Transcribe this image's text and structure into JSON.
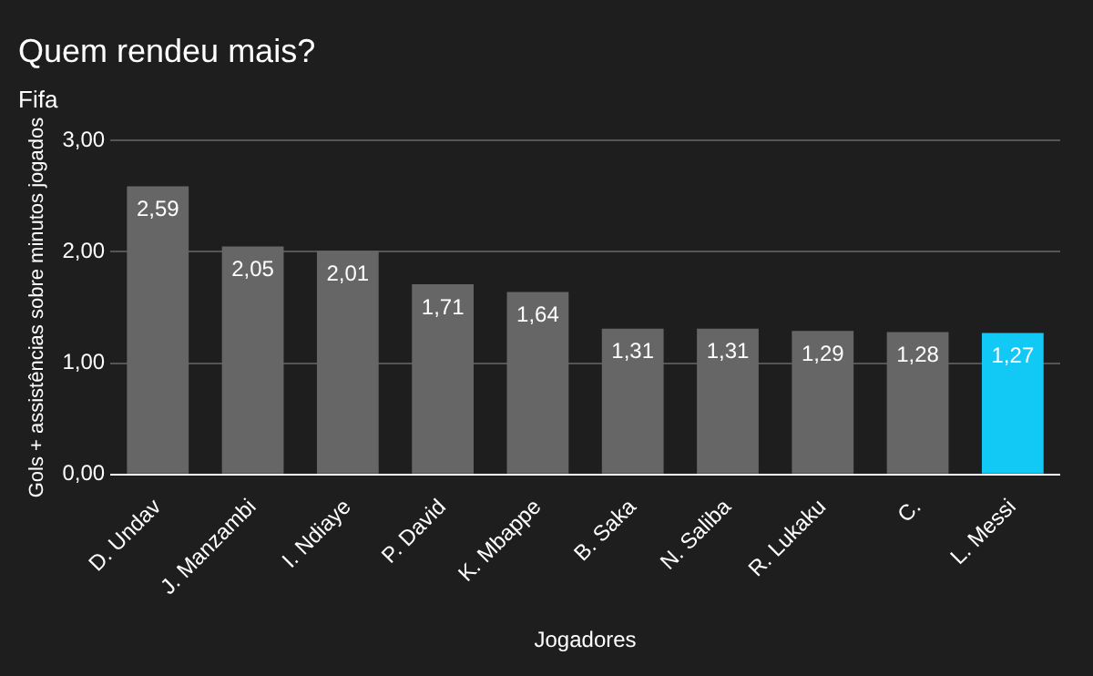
{
  "chart_data": {
    "type": "bar",
    "title": "Quem rendeu mais?",
    "subtitle": "Fifa",
    "xlabel": "Jogadores",
    "ylabel": "Gols + assistências sobre minutos jogados",
    "categories": [
      "D. Undav",
      "J. Manzambi",
      "I. Ndiaye",
      "P. David",
      "K. Mbappe",
      "B. Saka",
      "N. Saliba",
      "R. Lukaku",
      "C.",
      "L. Messi"
    ],
    "values": [
      2.59,
      2.05,
      2.01,
      1.71,
      1.64,
      1.31,
      1.31,
      1.29,
      1.28,
      1.27
    ],
    "colors": [
      "#666666",
      "#666666",
      "#666666",
      "#666666",
      "#666666",
      "#666666",
      "#666666",
      "#666666",
      "#666666",
      "#12c8f4"
    ],
    "value_labels": [
      "2,59",
      "2,05",
      "2,01",
      "1,71",
      "1,64",
      "1,31",
      "1,31",
      "1,29",
      "1,28",
      "1,27"
    ],
    "ylim": [
      0,
      3
    ],
    "yticks": [
      {
        "value": 0,
        "label": "0,00"
      },
      {
        "value": 1,
        "label": "1,00"
      },
      {
        "value": 2,
        "label": "2,00"
      },
      {
        "value": 3,
        "label": "3,00"
      }
    ],
    "grid": "y",
    "legend": false
  }
}
